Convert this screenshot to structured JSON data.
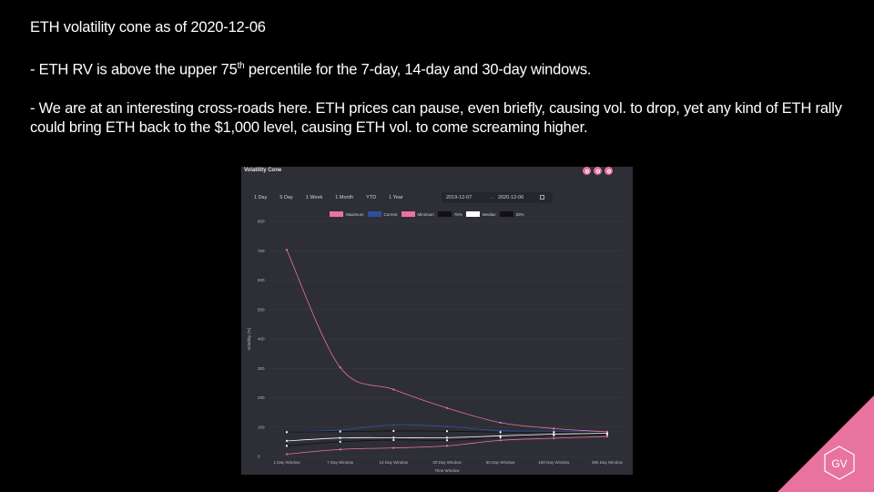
{
  "slide": {
    "title": "ETH volatility  cone as of 2020-12-06",
    "bullet1": "- ETH RV is above the upper 75th percentile for the 7-day, 14-day and 30-day windows.",
    "bullet1_pre": "- ETH RV is above the upper 75",
    "bullet1_sup": "th",
    "bullet1_post": " percentile for the 7-day, 14-day and 30-day windows.",
    "bullet2": "- We are at an interesting cross-roads here. ETH prices can pause, even briefly, causing vol. to drop, yet any kind of ETH rally could bring ETH back to the $1,000 level, causing ETH vol. to come screaming higher.",
    "logo_text": "GV"
  },
  "panel": {
    "title": "Volatility Cone",
    "ranges": [
      "1 Day",
      "5 Day",
      "1 Week",
      "1 Month",
      "YTD",
      "1 Year"
    ],
    "date_from": "2019-12-07",
    "date_sep": "→",
    "date_to": "2020-12-06"
  },
  "chart_data": {
    "type": "line",
    "x": [
      "1 Day Window",
      "7 Day Window",
      "14 Day Window",
      "30 Day Window",
      "60 Day Window",
      "180 Day Window",
      "365 Day Window"
    ],
    "xlabel": "Time Window",
    "ylabel": "Volatility (%)",
    "ylim": [
      0,
      800
    ],
    "yticks": [
      0,
      100,
      200,
      300,
      400,
      500,
      600,
      700,
      800
    ],
    "grid": true,
    "legend_position": "top-center",
    "series": [
      {
        "name": "Maximum",
        "color": "#e8739f",
        "values": [
          703,
          303,
          228,
          165,
          115,
          95,
          84
        ]
      },
      {
        "name": "Current",
        "color": "#2f4f9a",
        "values": [
          82,
          90,
          108,
          102,
          88,
          86,
          84
        ]
      },
      {
        "name": "Minimum",
        "color": "#e8739f",
        "values": [
          8,
          24,
          29,
          36,
          55,
          62,
          68
        ]
      },
      {
        "name": "75%",
        "color": "#111111",
        "values": [
          83,
          85,
          87,
          86,
          83,
          83,
          82
        ]
      },
      {
        "name": "Median",
        "color": "#ffffff",
        "values": [
          53,
          63,
          64,
          64,
          70,
          76,
          79
        ]
      },
      {
        "name": "25%",
        "color": "#111111",
        "values": [
          36,
          50,
          56,
          55,
          65,
          72,
          75
        ]
      }
    ]
  }
}
